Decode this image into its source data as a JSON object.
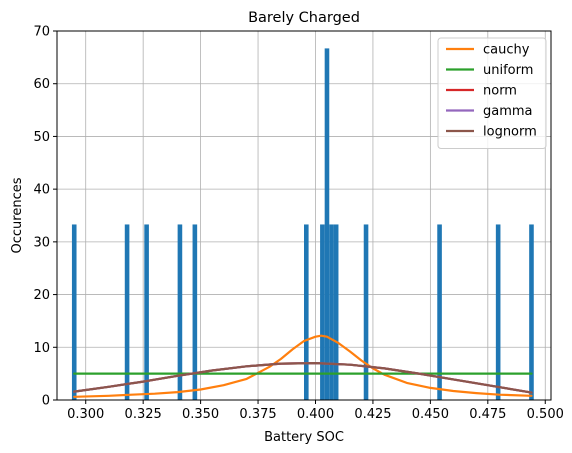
{
  "chart_data": {
    "type": "histogram",
    "title": "Barely Charged",
    "xlabel": "Battery SOC",
    "ylabel": "Occurences",
    "xlim": [
      0.2875,
      0.5025
    ],
    "ylim": [
      0,
      70
    ],
    "xticks": [
      0.3,
      0.325,
      0.35,
      0.375,
      0.4,
      0.425,
      0.45,
      0.475,
      0.5
    ],
    "xtick_labels": [
      "0.300",
      "0.325",
      "0.350",
      "0.375",
      "0.400",
      "0.425",
      "0.450",
      "0.475",
      "0.500"
    ],
    "yticks": [
      0,
      10,
      20,
      30,
      40,
      50,
      60,
      70
    ],
    "ytick_labels": [
      "0",
      "10",
      "20",
      "30",
      "40",
      "50",
      "60",
      "70"
    ],
    "grid": true,
    "legend_position": "top-right",
    "bar_color": "#1f77b4",
    "bar_width": 0.002,
    "bars": [
      {
        "x": 0.295,
        "y": 33.3
      },
      {
        "x": 0.318,
        "y": 33.3
      },
      {
        "x": 0.3265,
        "y": 33.3
      },
      {
        "x": 0.341,
        "y": 33.3
      },
      {
        "x": 0.3475,
        "y": 33.3
      },
      {
        "x": 0.396,
        "y": 33.3
      },
      {
        "x": 0.403,
        "y": 33.3
      },
      {
        "x": 0.405,
        "y": 66.7
      },
      {
        "x": 0.407,
        "y": 33.3
      },
      {
        "x": 0.409,
        "y": 33.3
      },
      {
        "x": 0.422,
        "y": 33.3
      },
      {
        "x": 0.454,
        "y": 33.3
      },
      {
        "x": 0.4795,
        "y": 33.3
      },
      {
        "x": 0.494,
        "y": 33.3
      }
    ],
    "series": [
      {
        "name": "cauchy",
        "color": "#ff7f0e",
        "x": [
          0.295,
          0.31,
          0.32,
          0.33,
          0.34,
          0.35,
          0.36,
          0.37,
          0.38,
          0.385,
          0.39,
          0.395,
          0.4,
          0.4025,
          0.405,
          0.41,
          0.415,
          0.42,
          0.425,
          0.43,
          0.44,
          0.45,
          0.46,
          0.47,
          0.48,
          0.494
        ],
        "y": [
          0.6,
          0.8,
          1.0,
          1.2,
          1.5,
          2.0,
          2.8,
          4.0,
          6.3,
          7.8,
          9.6,
          11.2,
          12.0,
          12.2,
          12.0,
          10.8,
          9.2,
          7.5,
          6.0,
          4.8,
          3.2,
          2.3,
          1.7,
          1.3,
          1.0,
          0.8
        ]
      },
      {
        "name": "uniform",
        "color": "#2ca02c",
        "x": [
          0.295,
          0.494
        ],
        "y": [
          5.0,
          5.0
        ]
      },
      {
        "name": "norm",
        "color": "#d62728",
        "x": [
          0.295,
          0.31,
          0.325,
          0.34,
          0.355,
          0.37,
          0.385,
          0.4,
          0.415,
          0.43,
          0.445,
          0.46,
          0.475,
          0.494
        ],
        "y": [
          1.6,
          2.5,
          3.5,
          4.6,
          5.6,
          6.4,
          6.9,
          7.0,
          6.7,
          6.0,
          5.0,
          3.9,
          2.8,
          1.4
        ]
      },
      {
        "name": "gamma",
        "color": "#9467bd",
        "x": [
          0.295,
          0.31,
          0.325,
          0.34,
          0.355,
          0.37,
          0.385,
          0.4,
          0.415,
          0.43,
          0.445,
          0.46,
          0.475,
          0.494
        ],
        "y": [
          1.6,
          2.5,
          3.5,
          4.6,
          5.6,
          6.4,
          6.9,
          7.0,
          6.7,
          6.0,
          5.0,
          3.9,
          2.8,
          1.4
        ]
      },
      {
        "name": "lognorm",
        "color": "#8c564b",
        "x": [
          0.295,
          0.31,
          0.325,
          0.34,
          0.355,
          0.37,
          0.385,
          0.4,
          0.415,
          0.43,
          0.445,
          0.46,
          0.475,
          0.494
        ],
        "y": [
          1.6,
          2.5,
          3.5,
          4.6,
          5.6,
          6.4,
          6.9,
          7.0,
          6.7,
          6.0,
          5.0,
          3.9,
          2.8,
          1.4
        ]
      }
    ]
  }
}
